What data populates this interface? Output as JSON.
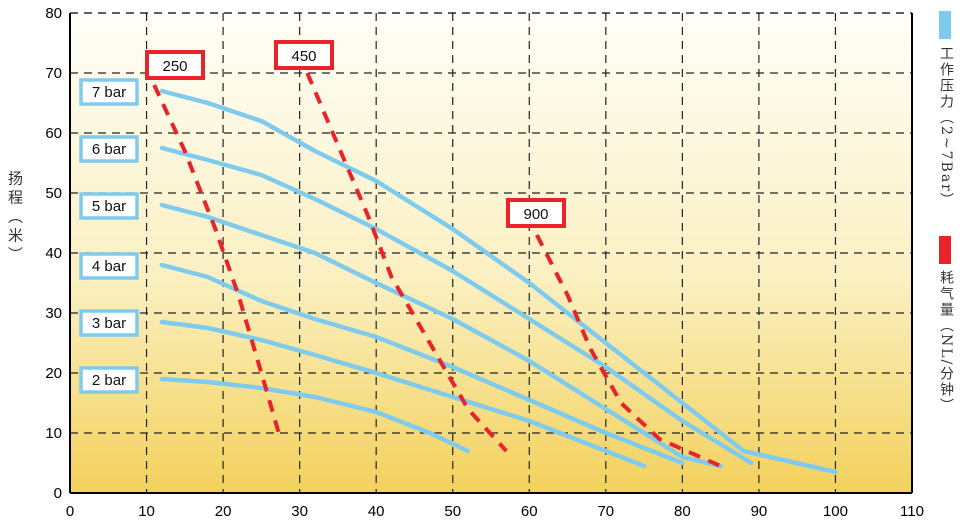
{
  "chart_data": {
    "type": "line",
    "ylabel": "扬程（米）",
    "xlim": [
      0,
      110
    ],
    "ylim": [
      0,
      80
    ],
    "x_ticks": [
      0,
      10,
      20,
      30,
      40,
      50,
      60,
      70,
      80,
      90,
      100,
      110
    ],
    "y_ticks": [
      0,
      10,
      20,
      30,
      40,
      50,
      60,
      70,
      80
    ],
    "grid": true,
    "legend": [
      {
        "label": "工作压力（2~7Bar）",
        "color": "#7fcbed"
      },
      {
        "label": "耗气量（NL/分钟）",
        "color": "#e8232a"
      }
    ],
    "pressure_series": [
      {
        "name": "7 bar",
        "points": [
          [
            12,
            67
          ],
          [
            18,
            65
          ],
          [
            25,
            62
          ],
          [
            32,
            57
          ],
          [
            40,
            52
          ],
          [
            50,
            44
          ],
          [
            60,
            35
          ],
          [
            70,
            25
          ],
          [
            80,
            15
          ],
          [
            88,
            7
          ],
          [
            100,
            3.5
          ]
        ]
      },
      {
        "name": "6 bar",
        "points": [
          [
            12,
            57.5
          ],
          [
            18,
            55.5
          ],
          [
            25,
            53
          ],
          [
            32,
            49
          ],
          [
            40,
            44
          ],
          [
            50,
            37
          ],
          [
            60,
            29
          ],
          [
            70,
            21
          ],
          [
            80,
            12
          ],
          [
            89,
            5
          ]
        ]
      },
      {
        "name": "5 bar",
        "points": [
          [
            12,
            48
          ],
          [
            18,
            46
          ],
          [
            25,
            43
          ],
          [
            32,
            40
          ],
          [
            40,
            35
          ],
          [
            50,
            29
          ],
          [
            60,
            22
          ],
          [
            70,
            14
          ],
          [
            80,
            6
          ],
          [
            85,
            4.5
          ]
        ]
      },
      {
        "name": "4 bar",
        "points": [
          [
            12,
            38
          ],
          [
            18,
            36
          ],
          [
            25,
            32
          ],
          [
            32,
            29
          ],
          [
            40,
            26
          ],
          [
            50,
            21
          ],
          [
            60,
            15.5
          ],
          [
            70,
            10
          ],
          [
            80,
            5
          ]
        ]
      },
      {
        "name": "3 bar",
        "points": [
          [
            12,
            28.5
          ],
          [
            18,
            27.5
          ],
          [
            25,
            25.5
          ],
          [
            32,
            23
          ],
          [
            40,
            20
          ],
          [
            50,
            16
          ],
          [
            60,
            12
          ],
          [
            70,
            7
          ],
          [
            75,
            4.5
          ]
        ]
      },
      {
        "name": "2 bar",
        "points": [
          [
            12,
            19
          ],
          [
            18,
            18.5
          ],
          [
            25,
            17.5
          ],
          [
            32,
            16
          ],
          [
            40,
            13.5
          ],
          [
            47,
            10
          ],
          [
            52,
            7
          ]
        ]
      }
    ],
    "consumption_series": [
      {
        "name": "250",
        "points": [
          [
            11,
            68
          ],
          [
            15,
            57
          ],
          [
            19,
            44
          ],
          [
            22,
            33
          ],
          [
            25,
            20
          ],
          [
            27.5,
            9
          ]
        ]
      },
      {
        "name": "450",
        "points": [
          [
            31,
            70
          ],
          [
            35,
            58
          ],
          [
            39,
            46
          ],
          [
            42,
            36
          ],
          [
            47,
            25
          ],
          [
            52,
            14
          ],
          [
            57,
            7
          ]
        ]
      },
      {
        "name": "900",
        "points": [
          [
            61,
            43
          ],
          [
            65,
            33
          ],
          [
            68,
            24
          ],
          [
            72,
            15
          ],
          [
            77,
            9
          ],
          [
            85,
            4.5
          ]
        ]
      }
    ]
  }
}
